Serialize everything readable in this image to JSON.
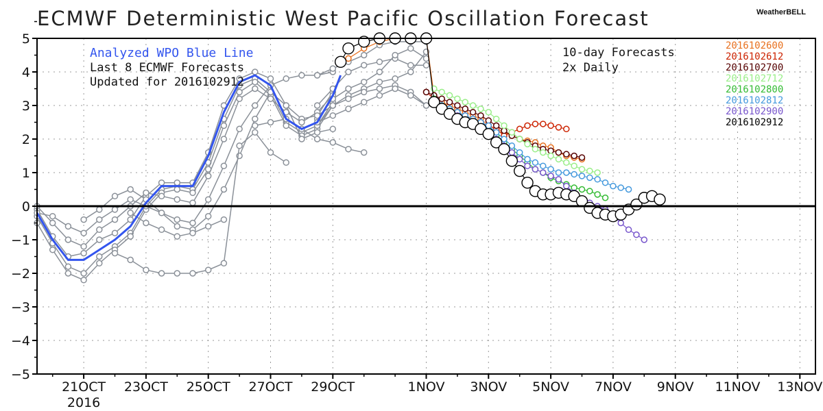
{
  "header": {
    "title": "ECMWF Deterministic West Pacific Oscillation Forecast",
    "brand": "WeatherBELL"
  },
  "annotations": {
    "analyzed": "Analyzed WPO Blue Line",
    "last": "Last 8 ECMWF Forecasts",
    "updated": "Updated for 2016102912",
    "ten_day": "10-day Forecasts",
    "twice": "2x Daily"
  },
  "chart_data": {
    "type": "line",
    "title": "ECMWF Deterministic West Pacific Oscillation Forecast",
    "xlabel": "",
    "ylabel": "",
    "x_unit": "days since 2016-10-21 (tick labels are dates)",
    "xlim": [
      -1.5,
      23.5
    ],
    "ylim": [
      -5,
      5
    ],
    "yticks": [
      -5,
      -4,
      -3,
      -2,
      -1,
      0,
      1,
      2,
      3,
      4,
      5
    ],
    "xticks": [
      {
        "x": 0,
        "label": "21OCT",
        "sub": "2016"
      },
      {
        "x": 2,
        "label": "23OCT"
      },
      {
        "x": 4,
        "label": "25OCT"
      },
      {
        "x": 6,
        "label": "27OCT"
      },
      {
        "x": 8,
        "label": "29OCT"
      },
      {
        "x": 11,
        "label": "1NOV"
      },
      {
        "x": 13,
        "label": "3NOV"
      },
      {
        "x": 15,
        "label": "5NOV"
      },
      {
        "x": 17,
        "label": "7NOV"
      },
      {
        "x": 19,
        "label": "9NOV"
      },
      {
        "x": 21,
        "label": "11NOV"
      },
      {
        "x": 23,
        "label": "13NOV"
      }
    ],
    "grid": true,
    "analyzed": {
      "name": "Analyzed WPO",
      "color": "#3355ee",
      "x": [
        -1.5,
        -1.0,
        -0.5,
        0.0,
        0.5,
        1.0,
        1.5,
        2.0,
        2.5,
        3.0,
        3.5,
        4.0,
        4.5,
        5.0,
        5.5,
        6.0,
        6.5,
        7.0,
        7.5,
        8.0,
        8.25
      ],
      "y": [
        -0.2,
        -1.0,
        -1.6,
        -1.6,
        -1.3,
        -1.0,
        -0.6,
        0.1,
        0.6,
        0.6,
        0.6,
        1.5,
        2.8,
        3.7,
        3.9,
        3.6,
        2.6,
        2.3,
        2.5,
        3.3,
        3.9
      ]
    },
    "historical_color": "#8a9098",
    "historical_runs": [
      {
        "x": [
          -1.5,
          -1,
          -0.5,
          0,
          0.5,
          1,
          1.5,
          2,
          2.5,
          3,
          3.5,
          4,
          4.5,
          5,
          5.5,
          6,
          6.5,
          7,
          7.5,
          8
        ],
        "y": [
          -0.3,
          -1.1,
          -1.8,
          -2.0,
          -1.5,
          -1.2,
          -0.8,
          0.0,
          0.5,
          0.6,
          0.5,
          1.3,
          2.6,
          3.6,
          3.8,
          3.4,
          2.5,
          2.2,
          2.4,
          3.1
        ]
      },
      {
        "x": [
          -1.5,
          -1,
          -0.5,
          0,
          0.5,
          1,
          1.5,
          2,
          2.5,
          3,
          3.5,
          4,
          4.5,
          5,
          5.5,
          6,
          6.5,
          7,
          7.5,
          8
        ],
        "y": [
          -0.5,
          -1.3,
          -2.0,
          -2.2,
          -1.7,
          -1.3,
          -0.9,
          -0.1,
          0.4,
          0.5,
          0.4,
          1.1,
          2.4,
          3.4,
          3.7,
          3.3,
          2.4,
          2.1,
          2.3,
          3.0
        ]
      },
      {
        "x": [
          -1.5,
          -1,
          -0.5,
          0,
          0.5,
          1,
          1.5,
          2,
          2.5,
          3,
          3.5,
          4,
          4.5,
          5,
          5.5,
          6,
          6.5,
          7,
          7.5,
          8
        ],
        "y": [
          -0.1,
          -0.9,
          -1.5,
          -1.4,
          -1.0,
          -0.8,
          -0.4,
          0.3,
          0.7,
          0.7,
          0.7,
          1.6,
          3.0,
          3.8,
          4.0,
          3.8,
          3.0,
          2.6,
          2.7,
          3.4
        ]
      },
      {
        "x": [
          -1.5,
          -1,
          -0.5,
          0,
          0.5,
          1,
          1.5,
          2,
          2.5,
          3,
          3.5,
          4,
          4.5,
          5,
          5.5,
          6,
          6.5,
          7,
          7.5,
          8
        ],
        "y": [
          0.0,
          -0.5,
          -1.0,
          -1.2,
          -0.7,
          -0.4,
          0.0,
          0.4,
          0.3,
          0.2,
          0.1,
          0.9,
          2.0,
          3.2,
          3.5,
          3.2,
          2.8,
          2.5,
          2.8,
          3.3
        ]
      },
      {
        "x": [
          -1.5,
          -1,
          -0.5,
          0,
          0.5,
          1,
          1.5,
          2,
          2.5,
          3,
          3.5,
          4,
          4.5,
          5,
          5.5,
          6,
          6.5,
          7,
          7.5,
          8
        ],
        "y": [
          -0.2,
          -0.3,
          -0.6,
          -0.8,
          -0.4,
          -0.1,
          0.2,
          0.0,
          -0.2,
          -0.4,
          -0.5,
          0.2,
          1.2,
          2.3,
          3.0,
          3.6,
          3.8,
          3.9,
          3.9,
          4.0
        ]
      },
      {
        "x": [
          0,
          0.5,
          1,
          1.5,
          2,
          2.5,
          3,
          3.5,
          4,
          4.5,
          5,
          5.5,
          6,
          6.5,
          7,
          7.5,
          8
        ],
        "y": [
          -0.4,
          -0.1,
          0.3,
          0.5,
          0.2,
          -0.2,
          -0.6,
          -0.7,
          -0.3,
          0.5,
          1.5,
          2.6,
          3.4,
          3.0,
          2.0,
          2.2,
          2.3
        ]
      },
      {
        "x": [
          1,
          1.5,
          2,
          2.5,
          3,
          3.5,
          4,
          4.5,
          5,
          5.5,
          6,
          6.5
        ],
        "y": [
          -1.4,
          -1.6,
          -1.9,
          -2.0,
          -2.0,
          -2.0,
          -1.9,
          -1.7,
          1.8,
          2.2,
          1.6,
          1.3
        ]
      },
      {
        "x": [
          1.5,
          2,
          2.5,
          3,
          3.5,
          4,
          4.5
        ],
        "y": [
          -0.2,
          -0.5,
          -0.7,
          -0.9,
          -0.8,
          -0.6,
          -0.4
        ]
      },
      {
        "x": [
          5.5,
          6,
          6.5,
          7,
          7.5,
          8,
          8.5,
          9
        ],
        "y": [
          2.4,
          2.5,
          2.6,
          2.3,
          2.0,
          1.9,
          1.7,
          1.6
        ]
      },
      {
        "x": [
          7.5,
          8,
          8.5,
          9,
          9.5,
          10,
          10.5,
          11
        ],
        "y": [
          3.9,
          4.1,
          4.3,
          4.5,
          4.8,
          4.9,
          4.9,
          4.9
        ]
      },
      {
        "x": [
          7.5,
          8,
          8.5,
          9,
          9.5,
          10,
          10.5,
          11
        ],
        "y": [
          3.0,
          3.5,
          4.0,
          4.2,
          4.3,
          4.4,
          4.2,
          4.2
        ]
      },
      {
        "x": [
          7.5,
          8,
          8.5,
          9,
          9.5,
          10,
          10.5,
          11
        ],
        "y": [
          2.4,
          3.0,
          3.3,
          3.5,
          3.7,
          3.8,
          4.0,
          4.6
        ]
      },
      {
        "x": [
          7.5,
          8,
          8.5,
          9,
          9.5,
          10,
          10.5,
          11
        ],
        "y": [
          2.6,
          3.2,
          3.5,
          3.7,
          4.0,
          4.5,
          4.7,
          4.4
        ]
      },
      {
        "x": [
          7.5,
          8,
          8.5,
          9,
          9.5,
          10,
          10.5,
          11
        ],
        "y": [
          2.7,
          3.0,
          3.2,
          3.4,
          3.5,
          3.6,
          3.4,
          3.0
        ]
      },
      {
        "x": [
          7.5,
          8,
          8.5,
          9,
          9.5,
          10,
          10.5,
          11
        ],
        "y": [
          2.5,
          2.7,
          2.9,
          3.1,
          3.3,
          3.5,
          3.3,
          3.0
        ]
      }
    ],
    "forecast_series": [
      {
        "name": "2016102600",
        "color": "#e8701e",
        "x": [
          8.5,
          9,
          9.5,
          10,
          10.5,
          11,
          11.25,
          11.5,
          11.75,
          12,
          12.25,
          12.5,
          12.75,
          13,
          13.25,
          13.5,
          13.75,
          14,
          14.25,
          14.5,
          14.75,
          15,
          15.25,
          15.5,
          15.75,
          16
        ],
        "y": [
          4.4,
          4.7,
          4.9,
          5.0,
          5.0,
          5.1,
          3.3,
          3.1,
          3.0,
          2.9,
          2.8,
          2.7,
          2.6,
          2.4,
          2.3,
          2.2,
          2.1,
          2.0,
          1.95,
          1.9,
          1.8,
          1.75,
          1.6,
          1.5,
          1.45,
          1.4
        ]
      },
      {
        "name": "2016102612",
        "color": "#cc2200",
        "x": [
          11,
          11.25,
          11.5,
          11.75,
          12,
          12.25,
          12.5,
          12.75,
          13,
          13.25,
          13.5,
          13.75,
          14,
          14.25,
          14.5,
          14.75,
          15,
          15.25,
          15.5
        ],
        "y": [
          3.4,
          3.2,
          3.0,
          2.9,
          2.8,
          2.7,
          2.6,
          2.5,
          2.4,
          2.3,
          2.1,
          2.2,
          2.3,
          2.4,
          2.45,
          2.45,
          2.4,
          2.35,
          2.3
        ]
      },
      {
        "name": "2016102700",
        "color": "#550000",
        "x": [
          11,
          11.25,
          11.5,
          11.75,
          12,
          12.25,
          12.5,
          12.75,
          13,
          13.25,
          13.5,
          13.75,
          14,
          14.25,
          14.5,
          14.75,
          15,
          15.25,
          15.5,
          15.75,
          16
        ],
        "y": [
          3.4,
          3.3,
          3.2,
          3.1,
          3.0,
          2.9,
          2.8,
          2.7,
          2.55,
          2.4,
          2.25,
          2.1,
          2.0,
          1.9,
          1.8,
          1.7,
          1.65,
          1.6,
          1.55,
          1.5,
          1.45
        ]
      },
      {
        "name": "2016102712",
        "color": "#99ee88",
        "x": [
          11.25,
          11.5,
          11.75,
          12,
          12.25,
          12.5,
          12.75,
          13,
          13.25,
          13.5,
          13.75,
          14,
          14.25,
          14.5,
          14.75,
          15,
          15.25,
          15.5,
          15.75,
          16,
          16.25,
          16.5
        ],
        "y": [
          3.5,
          3.4,
          3.3,
          3.2,
          3.1,
          3.0,
          2.9,
          2.8,
          2.6,
          2.4,
          2.2,
          2.0,
          1.85,
          1.7,
          1.6,
          1.5,
          1.4,
          1.3,
          1.2,
          1.1,
          1.05,
          1.0
        ]
      },
      {
        "name": "2016102800",
        "color": "#33bb33",
        "x": [
          11.25,
          11.5,
          11.75,
          12,
          12.25,
          12.5,
          12.75,
          13,
          13.25,
          13.5,
          13.75,
          14,
          14.25,
          14.5,
          14.75,
          15,
          15.25,
          15.5,
          15.75,
          16,
          16.25,
          16.5,
          16.75
        ],
        "y": [
          3.2,
          3.0,
          2.9,
          2.8,
          2.6,
          2.5,
          2.4,
          2.3,
          2.1,
          1.9,
          1.7,
          1.5,
          1.3,
          1.1,
          1.0,
          0.85,
          0.75,
          0.65,
          0.55,
          0.5,
          0.45,
          0.35,
          0.25
        ]
      },
      {
        "name": "2016102812",
        "color": "#4499dd",
        "x": [
          11.5,
          11.75,
          12,
          12.25,
          12.5,
          12.75,
          13,
          13.25,
          13.5,
          13.75,
          14,
          14.25,
          14.5,
          14.75,
          15,
          15.25,
          15.5,
          15.75,
          16,
          16.25,
          16.5,
          16.75,
          17,
          17.25,
          17.5
        ],
        "y": [
          3.0,
          2.9,
          2.8,
          2.7,
          2.6,
          2.5,
          2.4,
          2.2,
          2.0,
          1.8,
          1.6,
          1.4,
          1.3,
          1.2,
          1.1,
          1.0,
          1.0,
          0.95,
          0.9,
          0.85,
          0.8,
          0.7,
          0.6,
          0.55,
          0.5
        ]
      },
      {
        "name": "2016102900",
        "color": "#7755cc",
        "x": [
          11.5,
          11.75,
          12,
          12.25,
          12.5,
          12.75,
          13,
          13.25,
          13.5,
          13.75,
          14,
          14.25,
          14.5,
          14.75,
          15,
          15.25,
          15.5,
          15.75,
          16,
          16.25,
          16.5,
          16.75,
          17,
          17.25,
          17.5,
          17.75,
          18
        ],
        "y": [
          2.9,
          2.8,
          2.7,
          2.5,
          2.4,
          2.3,
          2.2,
          2.0,
          1.8,
          1.6,
          1.4,
          1.2,
          1.1,
          1.0,
          0.9,
          0.8,
          0.6,
          0.4,
          0.2,
          0.1,
          0.0,
          -0.1,
          -0.3,
          -0.5,
          -0.7,
          -0.85,
          -1.0
        ]
      },
      {
        "name": "2016102912",
        "color": "#000000",
        "x": [
          11,
          11.5,
          12,
          12.5,
          13,
          13.5,
          14,
          14.5,
          15,
          15.5,
          16,
          16.5,
          17,
          17.5,
          18,
          18.5
        ],
        "y": [
          3.1,
          2.8,
          2.5,
          2.3,
          1.95,
          1.4,
          0.75,
          0.4,
          0.4,
          0.35,
          0.2,
          -0.2,
          -0.3,
          0.05,
          0.3,
          0.05
        ]
      }
    ],
    "black_run": {
      "name": "2016102912",
      "x": [
        8.25,
        8.5,
        9,
        9.5,
        10,
        10.5,
        11,
        11.25,
        11.5,
        11.75,
        12,
        12.25,
        12.5,
        12.75,
        13,
        13.25,
        13.5,
        13.75,
        14,
        14.25,
        14.5,
        14.75,
        15,
        15.25,
        15.5,
        15.75,
        16,
        16.25,
        16.5,
        16.75,
        17,
        17.25,
        17.5,
        17.75,
        18,
        18.25,
        18.5
      ],
      "y": [
        4.3,
        4.7,
        4.9,
        5.0,
        5.0,
        5.0,
        5.0,
        3.1,
        2.9,
        2.75,
        2.6,
        2.5,
        2.45,
        2.3,
        2.15,
        1.9,
        1.7,
        1.35,
        1.05,
        0.7,
        0.45,
        0.35,
        0.35,
        0.4,
        0.35,
        0.3,
        0.15,
        -0.05,
        -0.2,
        -0.25,
        -0.3,
        -0.25,
        -0.1,
        0.05,
        0.25,
        0.3,
        0.2
      ]
    },
    "legend": {
      "placement": "top-right",
      "entries": [
        {
          "label": "2016102600",
          "color": "#e8701e"
        },
        {
          "label": "2016102612",
          "color": "#cc2200"
        },
        {
          "label": "2016102700",
          "color": "#550000"
        },
        {
          "label": "2016102712",
          "color": "#99ee88"
        },
        {
          "label": "2016102800",
          "color": "#33bb33"
        },
        {
          "label": "2016102812",
          "color": "#4499dd"
        },
        {
          "label": "2016102900",
          "color": "#7755cc"
        },
        {
          "label": "2016102912",
          "color": "#000000"
        }
      ]
    }
  }
}
